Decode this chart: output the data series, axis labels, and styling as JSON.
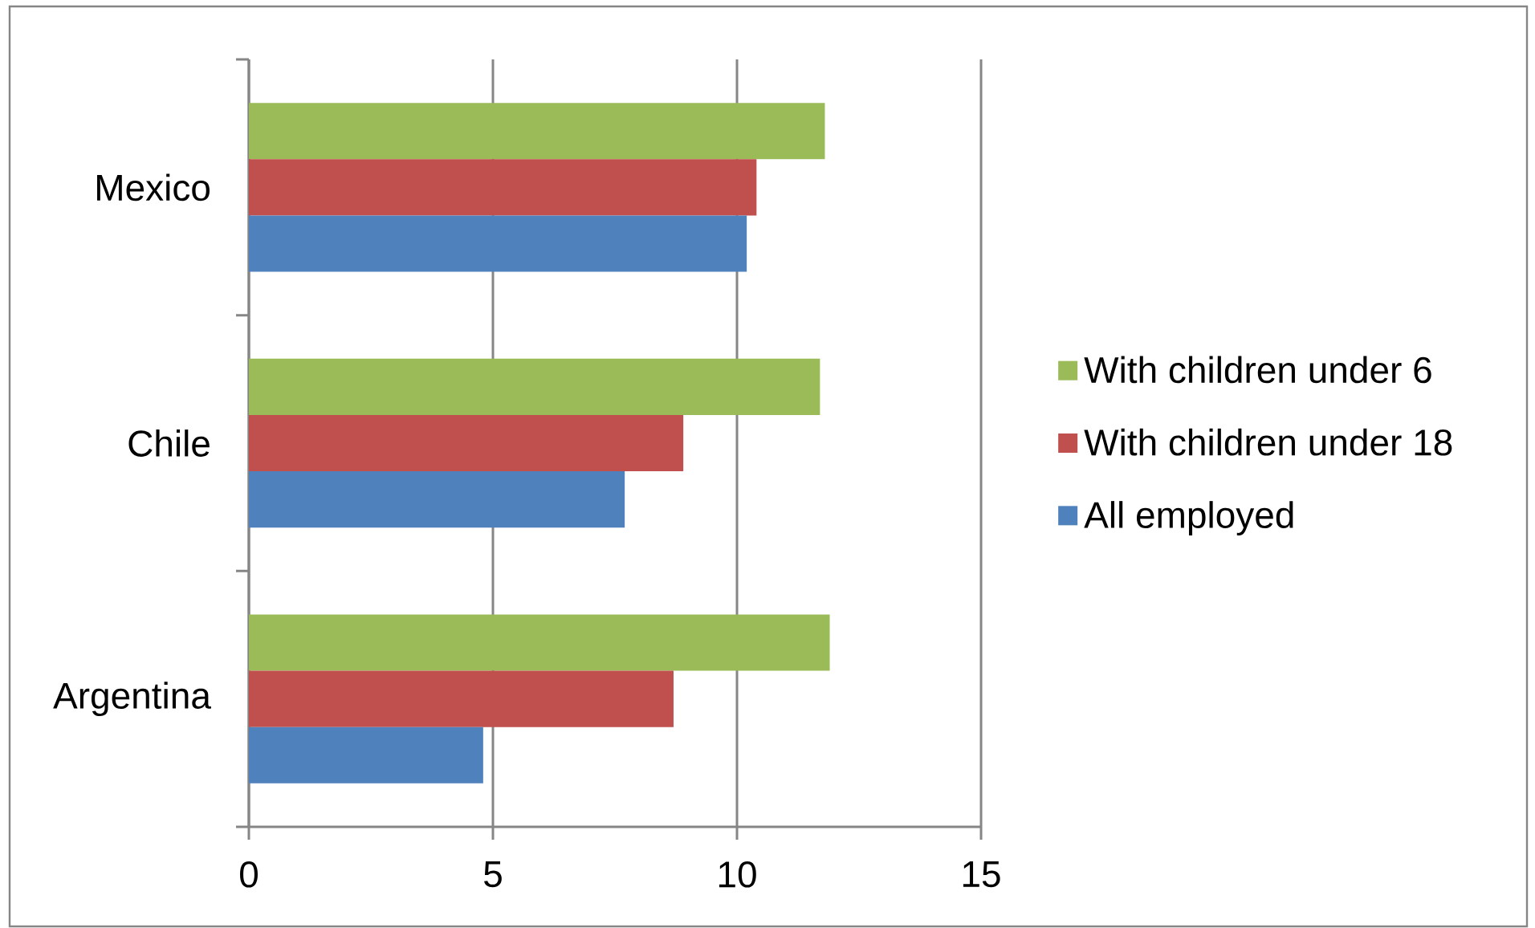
{
  "chart_data": {
    "type": "bar",
    "orientation": "horizontal",
    "categories": [
      "Mexico",
      "Chile",
      "Argentina"
    ],
    "series": [
      {
        "name": "With children under 6",
        "color": "#9bbb59",
        "values": [
          11.8,
          11.7,
          11.9
        ]
      },
      {
        "name": "With children under 18",
        "color": "#c0504d",
        "values": [
          10.4,
          8.9,
          8.7
        ]
      },
      {
        "name": "All employed",
        "color": "#4f81bd",
        "values": [
          10.2,
          7.7,
          4.8
        ]
      }
    ],
    "xlim": [
      0,
      15
    ],
    "xticks": [
      0,
      5,
      10,
      15
    ],
    "grid": "x",
    "legend": "right"
  }
}
